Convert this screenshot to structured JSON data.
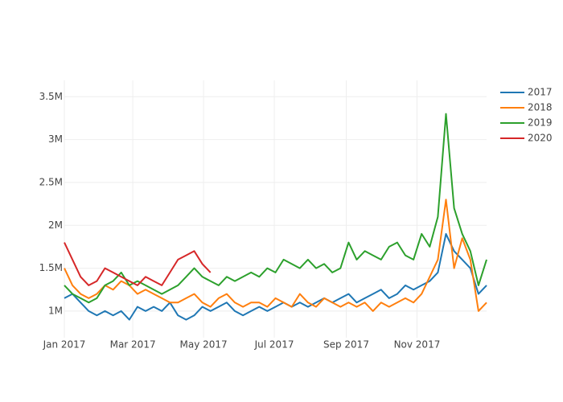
{
  "chart_data": {
    "type": "line",
    "x": [
      "2017-01-01",
      "2017-01-08",
      "2017-01-15",
      "2017-01-22",
      "2017-01-29",
      "2017-02-05",
      "2017-02-12",
      "2017-02-19",
      "2017-02-26",
      "2017-03-05",
      "2017-03-12",
      "2017-03-19",
      "2017-03-26",
      "2017-04-02",
      "2017-04-09",
      "2017-04-16",
      "2017-04-23",
      "2017-04-30",
      "2017-05-07",
      "2017-05-14",
      "2017-05-21",
      "2017-05-28",
      "2017-06-04",
      "2017-06-11",
      "2017-06-18",
      "2017-06-25",
      "2017-07-02",
      "2017-07-09",
      "2017-07-16",
      "2017-07-23",
      "2017-07-30",
      "2017-08-06",
      "2017-08-13",
      "2017-08-20",
      "2017-08-27",
      "2017-09-03",
      "2017-09-10",
      "2017-09-17",
      "2017-09-24",
      "2017-10-01",
      "2017-10-08",
      "2017-10-15",
      "2017-10-22",
      "2017-10-29",
      "2017-11-05",
      "2017-11-12",
      "2017-11-19",
      "2017-11-26",
      "2017-12-03",
      "2017-12-10",
      "2017-12-17",
      "2017-12-24",
      "2017-12-31"
    ],
    "series": [
      {
        "name": "2017",
        "color": "#1f77b4",
        "values": [
          1150000,
          1200000,
          1100000,
          1000000,
          950000,
          1000000,
          950000,
          1000000,
          900000,
          1050000,
          1000000,
          1050000,
          1000000,
          1100000,
          950000,
          900000,
          950000,
          1050000,
          1000000,
          1050000,
          1100000,
          1000000,
          950000,
          1000000,
          1050000,
          1000000,
          1050000,
          1100000,
          1050000,
          1100000,
          1050000,
          1100000,
          1150000,
          1100000,
          1150000,
          1200000,
          1100000,
          1150000,
          1200000,
          1250000,
          1150000,
          1200000,
          1300000,
          1250000,
          1300000,
          1350000,
          1450000,
          1900000,
          1700000,
          1600000,
          1500000,
          1200000,
          1300000
        ]
      },
      {
        "name": "2018",
        "color": "#ff7f0e",
        "values": [
          1500000,
          1300000,
          1200000,
          1150000,
          1200000,
          1300000,
          1250000,
          1350000,
          1300000,
          1200000,
          1250000,
          1200000,
          1150000,
          1100000,
          1100000,
          1150000,
          1200000,
          1100000,
          1050000,
          1150000,
          1200000,
          1100000,
          1050000,
          1100000,
          1100000,
          1050000,
          1150000,
          1100000,
          1050000,
          1200000,
          1100000,
          1050000,
          1150000,
          1100000,
          1050000,
          1100000,
          1050000,
          1100000,
          1000000,
          1100000,
          1050000,
          1100000,
          1150000,
          1100000,
          1200000,
          1400000,
          1600000,
          2300000,
          1500000,
          1850000,
          1600000,
          1000000,
          1100000
        ]
      },
      {
        "name": "2019",
        "color": "#2ca02c",
        "values": [
          1300000,
          1200000,
          1150000,
          1100000,
          1150000,
          1300000,
          1350000,
          1450000,
          1300000,
          1350000,
          1300000,
          1250000,
          1200000,
          1250000,
          1300000,
          1400000,
          1500000,
          1400000,
          1350000,
          1300000,
          1400000,
          1350000,
          1400000,
          1450000,
          1400000,
          1500000,
          1450000,
          1600000,
          1550000,
          1500000,
          1600000,
          1500000,
          1550000,
          1450000,
          1500000,
          1800000,
          1600000,
          1700000,
          1650000,
          1600000,
          1750000,
          1800000,
          1650000,
          1600000,
          1900000,
          1750000,
          2100000,
          3300000,
          2200000,
          1900000,
          1700000,
          1300000,
          1600000
        ]
      },
      {
        "name": "2020",
        "color": "#d62728",
        "values": [
          1800000,
          1600000,
          1400000,
          1300000,
          1350000,
          1500000,
          1450000,
          1400000,
          1350000,
          1300000,
          1400000,
          1350000,
          1300000,
          1450000,
          1600000,
          1650000,
          1700000,
          1550000,
          1450000,
          null,
          null,
          null,
          null,
          null,
          null,
          null,
          null,
          null,
          null,
          null,
          null,
          null,
          null,
          null,
          null,
          null,
          null,
          null,
          null,
          null,
          null,
          null,
          null,
          null,
          null,
          null,
          null,
          null,
          null,
          null,
          null,
          null,
          null
        ]
      }
    ],
    "xlim": [
      "2017-01-01",
      "2017-12-31"
    ],
    "xticks": [
      {
        "value": "2017-01-01",
        "label": "Jan 2017"
      },
      {
        "value": "2017-03-01",
        "label": "Mar 2017"
      },
      {
        "value": "2017-05-01",
        "label": "May 2017"
      },
      {
        "value": "2017-07-01",
        "label": "Jul 2017"
      },
      {
        "value": "2017-09-01",
        "label": "Sep 2017"
      },
      {
        "value": "2017-11-01",
        "label": "Nov 2017"
      }
    ],
    "ylim": [
      690000,
      3690000
    ],
    "yticks": [
      {
        "value": 1000000,
        "label": "1M"
      },
      {
        "value": 1500000,
        "label": "1.5M"
      },
      {
        "value": 2000000,
        "label": "2M"
      },
      {
        "value": 2500000,
        "label": "2.5M"
      },
      {
        "value": 3000000,
        "label": "3M"
      },
      {
        "value": 3500000,
        "label": "3.5M"
      }
    ],
    "grid": true,
    "legend": "top-right"
  }
}
